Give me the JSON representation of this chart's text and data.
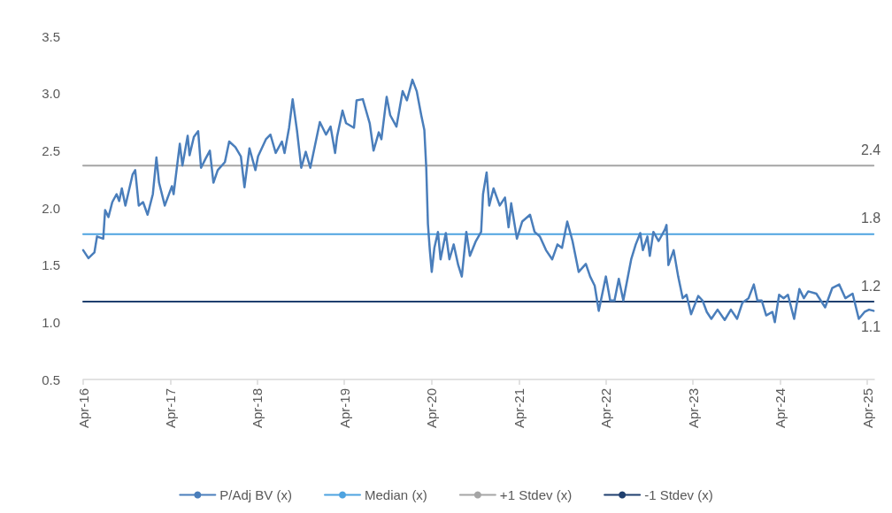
{
  "chart_data": {
    "type": "line",
    "xlim": [
      "2016-04-01",
      "2025-04-30"
    ],
    "xticks": [
      {
        "value": "2016-04-01",
        "label": "Apr-16"
      },
      {
        "value": "2017-04-01",
        "label": "Apr-17"
      },
      {
        "value": "2018-04-01",
        "label": "Apr-18"
      },
      {
        "value": "2019-04-01",
        "label": "Apr-19"
      },
      {
        "value": "2020-04-01",
        "label": "Apr-20"
      },
      {
        "value": "2021-04-01",
        "label": "Apr-21"
      },
      {
        "value": "2022-04-01",
        "label": "Apr-22"
      },
      {
        "value": "2023-04-01",
        "label": "Apr-23"
      },
      {
        "value": "2024-04-01",
        "label": "Apr-24"
      },
      {
        "value": "2025-04-01",
        "label": "Apr-25"
      }
    ],
    "ylim": [
      0.5,
      3.5
    ],
    "yticks": [
      0.5,
      {
        "value": 1,
        "label": "1.0"
      },
      1.5,
      {
        "value": 2,
        "label": "2.0"
      },
      2.5,
      {
        "value": 3,
        "label": "3.0"
      },
      3.5
    ],
    "legend": "bottom",
    "series": [
      {
        "name": "P/Adj BV (x)",
        "color": "#4a7ebb",
        "x": [
          "2016-04-01",
          "2016-04-23",
          "2016-05-18",
          "2016-05-29",
          "2016-06-24",
          "2016-07-02",
          "2016-07-16",
          "2016-08-01",
          "2016-08-19",
          "2016-08-30",
          "2016-09-10",
          "2016-09-25",
          "2016-10-25",
          "2016-11-05",
          "2016-11-20",
          "2016-12-08",
          "2016-12-27",
          "2017-01-18",
          "2017-02-02",
          "2017-02-13",
          "2017-03-09",
          "2017-04-08",
          "2017-04-15",
          "2017-05-11",
          "2017-05-22",
          "2017-06-13",
          "2017-06-21",
          "2017-07-09",
          "2017-07-27",
          "2017-08-08",
          "2017-08-27",
          "2017-09-14",
          "2017-09-29",
          "2017-10-17",
          "2017-11-16",
          "2017-12-04",
          "2017-12-30",
          "2018-01-22",
          "2018-02-06",
          "2018-02-27",
          "2018-03-24",
          "2018-04-04",
          "2018-05-07",
          "2018-05-26",
          "2018-06-17",
          "2018-07-13",
          "2018-07-24",
          "2018-08-12",
          "2018-08-27",
          "2018-09-14",
          "2018-10-02",
          "2018-10-21",
          "2018-11-09",
          "2018-11-27",
          "2018-12-19",
          "2019-01-14",
          "2019-02-02",
          "2019-02-21",
          "2019-03-01",
          "2019-03-24",
          "2019-04-08",
          "2019-05-11",
          "2019-05-22",
          "2019-06-17",
          "2019-06-28",
          "2019-07-16",
          "2019-08-01",
          "2019-08-23",
          "2019-09-03",
          "2019-09-25",
          "2019-10-10",
          "2019-11-05",
          "2019-12-01",
          "2019-12-19",
          "2020-01-11",
          "2020-01-29",
          "2020-02-17",
          "2020-03-01",
          "2020-03-09",
          "2020-03-16",
          "2020-03-24",
          "2020-04-01",
          "2020-04-12",
          "2020-04-27",
          "2020-05-08",
          "2020-05-30",
          "2020-06-14",
          "2020-07-02",
          "2020-07-21",
          "2020-08-05",
          "2020-08-24",
          "2020-09-08",
          "2020-10-03",
          "2020-10-25",
          "2020-11-02",
          "2020-11-17",
          "2020-11-28",
          "2020-12-16",
          "2021-01-11",
          "2021-02-02",
          "2021-02-17",
          "2021-02-28",
          "2021-03-24",
          "2021-04-15",
          "2021-05-18",
          "2021-06-06",
          "2021-06-28",
          "2021-07-24",
          "2021-08-19",
          "2021-09-10",
          "2021-09-29",
          "2021-10-21",
          "2021-11-12",
          "2021-12-08",
          "2022-01-07",
          "2022-01-25",
          "2022-02-13",
          "2022-03-02",
          "2022-03-16",
          "2022-04-01",
          "2022-04-19",
          "2022-05-07",
          "2022-05-25",
          "2022-06-13",
          "2022-07-16",
          "2022-08-04",
          "2022-08-23",
          "2022-09-03",
          "2022-09-22",
          "2022-10-02",
          "2022-10-17",
          "2022-11-08",
          "2022-12-04",
          "2022-12-11",
          "2022-12-19",
          "2023-01-10",
          "2023-01-29",
          "2023-02-17",
          "2023-03-05",
          "2023-03-24",
          "2023-04-23",
          "2023-05-11",
          "2023-05-29",
          "2023-06-17",
          "2023-07-13",
          "2023-08-12",
          "2023-09-07",
          "2023-10-03",
          "2023-10-25",
          "2023-11-20",
          "2023-12-12",
          "2023-12-27",
          "2024-01-14",
          "2024-02-02",
          "2024-02-28",
          "2024-03-09",
          "2024-03-27",
          "2024-04-15",
          "2024-05-03",
          "2024-05-29",
          "2024-06-20",
          "2024-07-09",
          "2024-07-27",
          "2024-08-30",
          "2024-10-06",
          "2024-11-05",
          "2024-12-04",
          "2024-12-30",
          "2025-01-29",
          "2025-02-24",
          "2025-03-20",
          "2025-04-08",
          "2025-04-27"
        ],
        "values": [
          1.63,
          1.56,
          1.61,
          1.75,
          1.73,
          1.98,
          1.92,
          2.05,
          2.12,
          2.06,
          2.17,
          2.02,
          2.29,
          2.33,
          2.02,
          2.05,
          1.94,
          2.12,
          2.44,
          2.22,
          2.02,
          2.19,
          2.12,
          2.56,
          2.37,
          2.63,
          2.46,
          2.62,
          2.67,
          2.35,
          2.43,
          2.5,
          2.22,
          2.33,
          2.4,
          2.58,
          2.53,
          2.45,
          2.18,
          2.52,
          2.33,
          2.45,
          2.6,
          2.64,
          2.48,
          2.58,
          2.48,
          2.7,
          2.95,
          2.68,
          2.35,
          2.49,
          2.35,
          2.53,
          2.75,
          2.64,
          2.71,
          2.48,
          2.62,
          2.85,
          2.74,
          2.7,
          2.94,
          2.95,
          2.87,
          2.74,
          2.5,
          2.66,
          2.6,
          2.97,
          2.81,
          2.71,
          3.02,
          2.94,
          3.12,
          3.02,
          2.81,
          2.68,
          2.35,
          1.86,
          1.63,
          1.44,
          1.65,
          1.79,
          1.55,
          1.78,
          1.55,
          1.68,
          1.5,
          1.4,
          1.79,
          1.58,
          1.71,
          1.79,
          2.12,
          2.31,
          2.02,
          2.17,
          2.02,
          2.09,
          1.83,
          2.04,
          1.73,
          1.88,
          1.94,
          1.79,
          1.75,
          1.63,
          1.55,
          1.68,
          1.65,
          1.88,
          1.71,
          1.44,
          1.51,
          1.4,
          1.32,
          1.1,
          1.24,
          1.4,
          1.19,
          1.19,
          1.38,
          1.19,
          1.55,
          1.68,
          1.78,
          1.63,
          1.75,
          1.58,
          1.79,
          1.71,
          1.81,
          1.85,
          1.5,
          1.63,
          1.4,
          1.21,
          1.24,
          1.07,
          1.23,
          1.19,
          1.09,
          1.03,
          1.11,
          1.02,
          1.11,
          1.03,
          1.17,
          1.21,
          1.33,
          1.19,
          1.19,
          1.06,
          1.09,
          1.0,
          1.24,
          1.21,
          1.24,
          1.03,
          1.29,
          1.21,
          1.27,
          1.25,
          1.13,
          1.3,
          1.33,
          1.21,
          1.25,
          1.03,
          1.09,
          1.11,
          1.1
        ]
      },
      {
        "name": "Median (x)",
        "color": "#4ea3e0",
        "x": [
          "2016-04-01",
          "2025-04-27"
        ],
        "values": [
          1.77,
          1.77
        ]
      },
      {
        "name": "+1 Stdev (x)",
        "color": "#a5a5a5",
        "x": [
          "2016-04-01",
          "2025-04-27"
        ],
        "values": [
          2.37,
          2.37
        ]
      },
      {
        "name": "-1 Stdev (x)",
        "color": "#1f3f6e",
        "x": [
          "2016-04-01",
          "2025-04-27"
        ],
        "values": [
          1.18,
          1.18
        ]
      }
    ],
    "annotations": [
      {
        "text": "2.4",
        "x": "2025-04-27",
        "y": 2.37
      },
      {
        "text": "1.8",
        "x": "2025-04-27",
        "y": 1.77
      },
      {
        "text": "1.2",
        "x": "2025-04-27",
        "y": 1.18
      },
      {
        "text": "1.1",
        "x": "2025-04-27",
        "y": 1.1
      }
    ]
  }
}
